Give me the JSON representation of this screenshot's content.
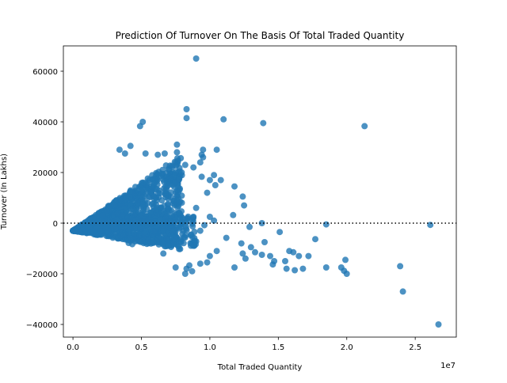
{
  "chart_data": {
    "type": "scatter",
    "title": "Prediction Of Turnover On The Basis Of Total Traded Quantity",
    "xlabel": "Total Traded Quantity",
    "ylabel": "Turnover (In Lakhs)",
    "x_offset_text": "1e7",
    "xlim": [
      -700000,
      28000000
    ],
    "ylim": [
      -45000,
      70000
    ],
    "x_ticks": [
      0,
      5000000,
      10000000,
      15000000,
      20000000,
      25000000
    ],
    "x_tick_labels": [
      "0.0",
      "0.5",
      "1.0",
      "1.5",
      "2.0",
      "2.5"
    ],
    "y_ticks": [
      -40000,
      -20000,
      0,
      20000,
      40000,
      60000
    ],
    "y_tick_labels": [
      "−40000",
      "−20000",
      "0",
      "20000",
      "40000",
      "60000"
    ],
    "reference_line_y": 0,
    "point_color": "#1f77b4",
    "grid": false,
    "series": [
      {
        "points": [
          [
            9000000,
            65000
          ],
          [
            8300000,
            45000
          ],
          [
            8300000,
            41500
          ],
          [
            11000000,
            41000
          ],
          [
            13900000,
            39500
          ],
          [
            21300000,
            38300
          ],
          [
            5100000,
            40000
          ],
          [
            4900000,
            38300
          ],
          [
            7600000,
            31000
          ],
          [
            9500000,
            29000
          ],
          [
            10500000,
            29000
          ],
          [
            3400000,
            29000
          ],
          [
            3800000,
            27500
          ],
          [
            5300000,
            27500
          ],
          [
            6200000,
            27000
          ],
          [
            6700000,
            27500
          ],
          [
            7600000,
            28000
          ],
          [
            4200000,
            30500
          ],
          [
            9400000,
            27000
          ],
          [
            9500000,
            26000
          ],
          [
            9300000,
            24000
          ],
          [
            9400000,
            18300
          ],
          [
            10300000,
            19000
          ],
          [
            8200000,
            23000
          ],
          [
            8800000,
            22000
          ],
          [
            10000000,
            17000
          ],
          [
            10800000,
            17000
          ],
          [
            10400000,
            15000
          ],
          [
            9800000,
            12000
          ],
          [
            11800000,
            14500
          ],
          [
            12400000,
            10500
          ],
          [
            12500000,
            7000
          ],
          [
            11700000,
            3200
          ],
          [
            18500000,
            -500
          ],
          [
            26100000,
            -700
          ],
          [
            17700000,
            -6300
          ],
          [
            15100000,
            -3500
          ],
          [
            15800000,
            -11000
          ],
          [
            17200000,
            -13000
          ],
          [
            16100000,
            -11500
          ],
          [
            16500000,
            -13000
          ],
          [
            15500000,
            -15000
          ],
          [
            15600000,
            -18000
          ],
          [
            16200000,
            -18600
          ],
          [
            16800000,
            -18000
          ],
          [
            18500000,
            -17500
          ],
          [
            19600000,
            -17500
          ],
          [
            19800000,
            -18800
          ],
          [
            20000000,
            -20000
          ],
          [
            19900000,
            -14500
          ],
          [
            23900000,
            -17000
          ],
          [
            24100000,
            -27000
          ],
          [
            26700000,
            -40000
          ],
          [
            14600000,
            -16300
          ],
          [
            14700000,
            -15000
          ],
          [
            14400000,
            -13000
          ],
          [
            13800000,
            -12500
          ],
          [
            13300000,
            -11500
          ],
          [
            12600000,
            -14000
          ],
          [
            12400000,
            -12000
          ],
          [
            12300000,
            -8000
          ],
          [
            11800000,
            -17500
          ],
          [
            10500000,
            -11000
          ],
          [
            10000000,
            -13000
          ],
          [
            9800000,
            -15500
          ],
          [
            9300000,
            -16000
          ],
          [
            8500000,
            -16700
          ],
          [
            8300000,
            -18000
          ],
          [
            8700000,
            -19000
          ],
          [
            8200000,
            -20000
          ],
          [
            7500000,
            -17500
          ],
          [
            6600000,
            -12000
          ],
          [
            13000000,
            -9500
          ],
          [
            14000000,
            -7500
          ],
          [
            12900000,
            -1500
          ],
          [
            13800000,
            0
          ],
          [
            8800000,
            2500
          ],
          [
            10000000,
            2500
          ],
          [
            9000000,
            6000
          ],
          [
            9300000,
            -3000
          ],
          [
            11200000,
            -5800
          ],
          [
            10300000,
            1000
          ],
          [
            9600000,
            -800
          ]
        ]
      }
    ]
  }
}
